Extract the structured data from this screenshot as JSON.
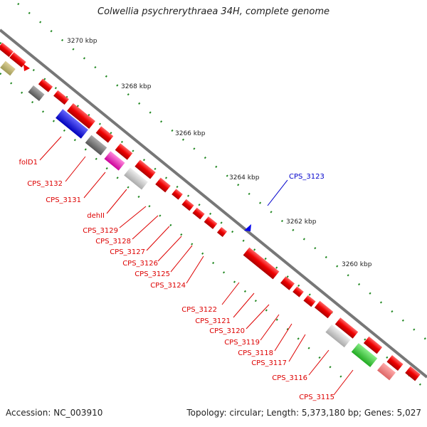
{
  "title": "Colwellia psychrerythraea 34H, complete genome",
  "accession": "Accession: NC_003910",
  "summary": "Topology: circular; Length: 5,373,180 bp; Genes: 5,027",
  "colors": {
    "backbone": "#777777",
    "ticks": "#228822",
    "label_red": "#dd0000",
    "label_blue": "#0000cc"
  },
  "kbp_marks": [
    "3270 kbp",
    "3268 kbp",
    "3266 kbp",
    "3264 kbp",
    "3262 kbp",
    "3260 kbp"
  ],
  "gene_labels": [
    {
      "text": "folD1",
      "color": "red"
    },
    {
      "text": "CPS_3132",
      "color": "red"
    },
    {
      "text": "CPS_3131",
      "color": "red"
    },
    {
      "text": "dehII",
      "color": "red"
    },
    {
      "text": "CPS_3129",
      "color": "red"
    },
    {
      "text": "CPS_3128",
      "color": "red"
    },
    {
      "text": "CPS_3127",
      "color": "red"
    },
    {
      "text": "CPS_3126",
      "color": "red"
    },
    {
      "text": "CPS_3125",
      "color": "red"
    },
    {
      "text": "CPS_3124",
      "color": "red"
    },
    {
      "text": "CPS_3123",
      "color": "blue"
    },
    {
      "text": "CPS_3122",
      "color": "red"
    },
    {
      "text": "CPS_3121",
      "color": "red"
    },
    {
      "text": "CPS_3120",
      "color": "red"
    },
    {
      "text": "CPS_3119",
      "color": "red"
    },
    {
      "text": "CPS_3118",
      "color": "red"
    },
    {
      "text": "CPS_3117",
      "color": "red"
    },
    {
      "text": "CPS_3116",
      "color": "red"
    },
    {
      "text": "CPS_3115",
      "color": "red"
    }
  ]
}
